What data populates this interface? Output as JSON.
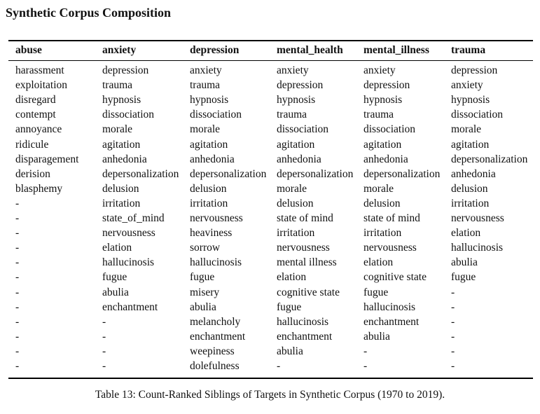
{
  "title": "Synthetic Corpus Composition",
  "table": {
    "headers": [
      "abuse",
      "anxiety",
      "depression",
      "mental_health",
      "mental_illness",
      "trauma"
    ],
    "rows": [
      [
        "harassment",
        "depression",
        "anxiety",
        "anxiety",
        "anxiety",
        "depression"
      ],
      [
        "exploitation",
        "trauma",
        "trauma",
        "depression",
        "depression",
        "anxiety"
      ],
      [
        "disregard",
        "hypnosis",
        "hypnosis",
        "hypnosis",
        "hypnosis",
        "hypnosis"
      ],
      [
        "contempt",
        "dissociation",
        "dissociation",
        "trauma",
        "trauma",
        "dissociation"
      ],
      [
        "annoyance",
        "morale",
        "morale",
        "dissociation",
        "dissociation",
        "morale"
      ],
      [
        "ridicule",
        "agitation",
        "agitation",
        "agitation",
        "agitation",
        "agitation"
      ],
      [
        "disparagement",
        "anhedonia",
        "anhedonia",
        "anhedonia",
        "anhedonia",
        "depersonalization"
      ],
      [
        "derision",
        "depersonalization",
        "depersonalization",
        "depersonalization",
        "depersonalization",
        "anhedonia"
      ],
      [
        "blasphemy",
        "delusion",
        "delusion",
        "morale",
        "morale",
        "delusion"
      ],
      [
        "-",
        "irritation",
        "irritation",
        "delusion",
        "delusion",
        "irritation"
      ],
      [
        "-",
        "state_of_mind",
        "nervousness",
        "state of mind",
        "state of mind",
        "nervousness"
      ],
      [
        "-",
        "nervousness",
        "heaviness",
        "irritation",
        "irritation",
        "elation"
      ],
      [
        "-",
        "elation",
        "sorrow",
        "nervousness",
        "nervousness",
        "hallucinosis"
      ],
      [
        "-",
        "hallucinosis",
        "hallucinosis",
        "mental illness",
        "elation",
        "abulia"
      ],
      [
        "-",
        "fugue",
        "fugue",
        "elation",
        "cognitive state",
        "fugue"
      ],
      [
        "-",
        "abulia",
        "misery",
        "cognitive state",
        "fugue",
        "-"
      ],
      [
        "-",
        "enchantment",
        "abulia",
        "fugue",
        "hallucinosis",
        "-"
      ],
      [
        "-",
        "-",
        "melancholy",
        "hallucinosis",
        "enchantment",
        "-"
      ],
      [
        "-",
        "-",
        "enchantment",
        "enchantment",
        "abulia",
        "-"
      ],
      [
        "-",
        "-",
        "weepiness",
        "abulia",
        "-",
        "-"
      ],
      [
        "-",
        "-",
        "dolefulness",
        "-",
        "-",
        "-"
      ]
    ]
  },
  "caption": "Table 13: Count-Ranked Siblings of Targets in Synthetic Corpus (1970 to 2019)."
}
